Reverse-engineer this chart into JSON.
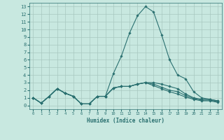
{
  "xlabel": "Humidex (Indice chaleur)",
  "ylabel": "",
  "background_color": "#c8e8e0",
  "grid_color": "#a8c8c0",
  "line_color": "#2a7070",
  "x_values": [
    0,
    1,
    2,
    3,
    4,
    5,
    6,
    7,
    8,
    9,
    10,
    11,
    12,
    13,
    14,
    15,
    16,
    17,
    18,
    19,
    20,
    21,
    22,
    23
  ],
  "series": [
    [
      1,
      0.3,
      1.2,
      2.2,
      1.6,
      1.2,
      0.2,
      0.2,
      1.2,
      1.2,
      4.2,
      6.5,
      9.5,
      11.8,
      13.0,
      12.3,
      9.3,
      6.0,
      4.0,
      3.5,
      1.8,
      1.0,
      0.8,
      0.6
    ],
    [
      1,
      0.3,
      1.2,
      2.2,
      1.6,
      1.2,
      0.2,
      0.2,
      1.2,
      1.2,
      2.3,
      2.5,
      2.5,
      2.8,
      3.0,
      3.0,
      2.8,
      2.5,
      2.2,
      1.5,
      1.0,
      0.8,
      0.8,
      0.6
    ],
    [
      1,
      0.3,
      1.2,
      2.2,
      1.6,
      1.2,
      0.2,
      0.2,
      1.2,
      1.2,
      2.3,
      2.5,
      2.5,
      2.8,
      3.0,
      2.8,
      2.4,
      2.0,
      1.8,
      1.3,
      0.9,
      0.7,
      0.7,
      0.5
    ],
    [
      1,
      0.3,
      1.2,
      2.2,
      1.6,
      1.2,
      0.2,
      0.2,
      1.2,
      1.2,
      2.3,
      2.5,
      2.5,
      2.8,
      3.0,
      2.6,
      2.2,
      1.8,
      1.5,
      1.1,
      0.8,
      0.6,
      0.6,
      0.4
    ]
  ],
  "xlim": [
    -0.5,
    23.5
  ],
  "ylim": [
    -0.5,
    13.5
  ],
  "yticks": [
    0,
    1,
    2,
    3,
    4,
    5,
    6,
    7,
    8,
    9,
    10,
    11,
    12,
    13
  ],
  "xticks": [
    0,
    1,
    2,
    3,
    4,
    5,
    6,
    7,
    8,
    9,
    10,
    11,
    12,
    13,
    14,
    15,
    16,
    17,
    18,
    19,
    20,
    21,
    22,
    23
  ],
  "marker": "D",
  "markersize": 1.8,
  "linewidth": 0.8,
  "xlabel_fontsize": 5.5,
  "tick_fontsize_x": 4.0,
  "tick_fontsize_y": 5.0
}
